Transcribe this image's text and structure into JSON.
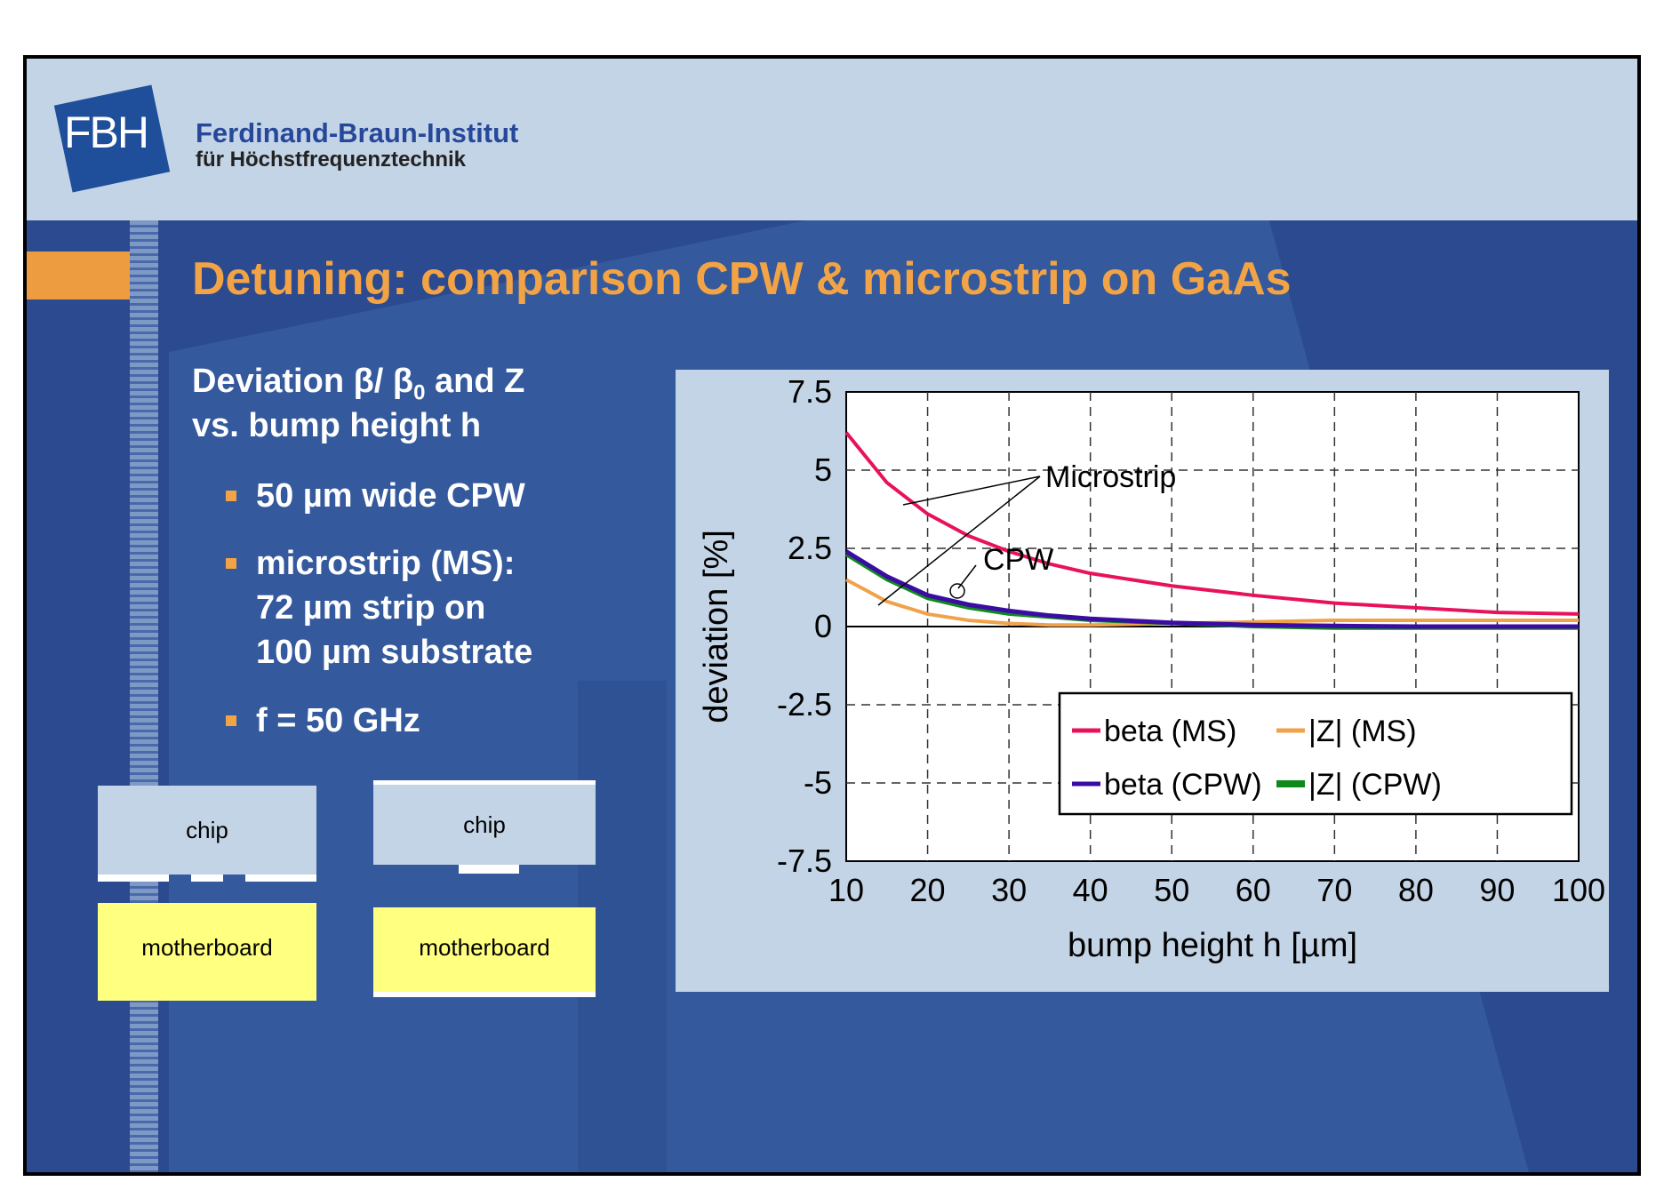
{
  "header": {
    "logo_text": "FBH",
    "institute_name": "Ferdinand-Braun-Institut",
    "institute_subtitle": "für Höchstfrequenztechnik"
  },
  "slide": {
    "title": "Detuning: comparison CPW & microstrip on GaAs",
    "intro_line1": "Deviation β/ β",
    "intro_line1_sub": "0",
    "intro_line1_end": " and Z",
    "intro_line2": "vs. bump height h",
    "bullets": [
      {
        "lines": [
          "50 µm wide CPW"
        ]
      },
      {
        "lines": [
          "microstrip (MS):",
          "72 µm strip on",
          "100 µm substrate"
        ]
      },
      {
        "lines": [
          "f = 50 GHz"
        ]
      }
    ]
  },
  "diagrams": {
    "left": {
      "chip": "chip",
      "board": "motherboard"
    },
    "right": {
      "chip": "chip",
      "board": "motherboard"
    }
  },
  "colors": {
    "beta_ms": "#e8125c",
    "z_ms": "#f0a24a",
    "beta_cpw": "#3a0ca3",
    "z_cpw": "#0e8a1a",
    "accent_orange": "#f2a345",
    "slide_blue": "#2b4a8f"
  },
  "chart_data": {
    "type": "line",
    "xlabel": "bump height h [µm]",
    "ylabel": "deviation [%]",
    "xlim": [
      10,
      100
    ],
    "ylim": [
      -7.5,
      7.5
    ],
    "xticks": [
      10,
      20,
      30,
      40,
      50,
      60,
      70,
      80,
      90,
      100
    ],
    "yticks": [
      7.5,
      5,
      2.5,
      0,
      -2.5,
      -5,
      -7.5
    ],
    "ytick_labels": [
      "7.5",
      "5",
      "2.5",
      "0",
      "-2.5",
      "-5",
      "-7.5"
    ],
    "grid": true,
    "legend_position": "bottom-right",
    "annotations": [
      "Microstrip",
      "CPW"
    ],
    "x": [
      10,
      15,
      20,
      25,
      30,
      35,
      40,
      50,
      60,
      70,
      80,
      90,
      100
    ],
    "series": [
      {
        "name": "beta (MS)",
        "values": [
          6.2,
          4.6,
          3.6,
          2.9,
          2.4,
          2.0,
          1.7,
          1.3,
          1.0,
          0.75,
          0.6,
          0.45,
          0.4
        ]
      },
      {
        "name": "|Z| (MS)",
        "values": [
          1.5,
          0.8,
          0.4,
          0.2,
          0.1,
          0.05,
          0.05,
          0.1,
          0.15,
          0.2,
          0.2,
          0.2,
          0.2
        ]
      },
      {
        "name": "beta (CPW)",
        "values": [
          2.4,
          1.6,
          1.0,
          0.7,
          0.5,
          0.35,
          0.25,
          0.12,
          0.05,
          0.02,
          0.0,
          0.0,
          0.0
        ]
      },
      {
        "name": "|Z| (CPW)",
        "values": [
          2.3,
          1.5,
          0.9,
          0.6,
          0.4,
          0.3,
          0.2,
          0.1,
          0.0,
          -0.05,
          -0.05,
          -0.05,
          -0.05
        ]
      }
    ]
  }
}
